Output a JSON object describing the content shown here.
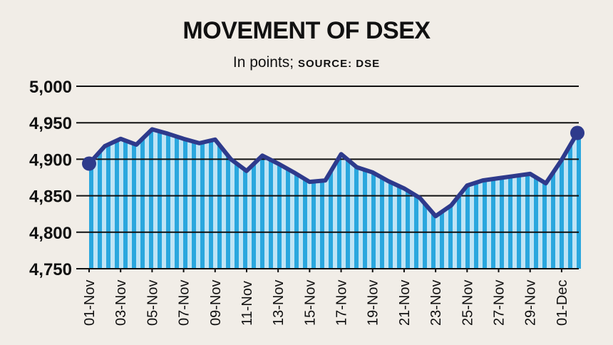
{
  "header": {
    "title": "MOVEMENT OF DSEX",
    "subtitle_main": "In points;",
    "subtitle_source": "SOURCE: DSE"
  },
  "colors": {
    "background": "#f1ede7",
    "line": "#2e3a8c",
    "bar_dark": "#2aa7de",
    "bar_light": "#bfe4f5",
    "text": "#111111"
  },
  "chart_data": {
    "type": "line",
    "title": "MOVEMENT OF DSEX",
    "subtitle": "In points; SOURCE: DSE",
    "xlabel": "",
    "ylabel": "",
    "ylim": [
      4750,
      5000
    ],
    "yticks": [
      4750,
      4800,
      4850,
      4900,
      4950,
      5000
    ],
    "ytick_labels": [
      "4,750",
      "4,800",
      "4,850",
      "4,900",
      "4,950",
      "5,000"
    ],
    "xtick_labels": [
      "01-Nov",
      "03-Nov",
      "05-Nov",
      "07-Nov",
      "09-Nov",
      "11-Nov",
      "13-Nov",
      "15-Nov",
      "17-Nov",
      "19-Nov",
      "21-Nov",
      "23-Nov",
      "25-Nov",
      "27-Nov",
      "29-Nov",
      "01-Dec"
    ],
    "grid": true,
    "series": [
      {
        "values": [
          4894,
          4918,
          4928,
          4920,
          4941,
          4935,
          4928,
          4922,
          4927,
          4900,
          4884,
          4905,
          4894,
          4882,
          4869,
          4871,
          4907,
          4889,
          4882,
          4870,
          4860,
          4847,
          4822,
          4837,
          4864,
          4871,
          4874,
          4877,
          4880,
          4867,
          4899,
          4936
        ]
      }
    ]
  }
}
